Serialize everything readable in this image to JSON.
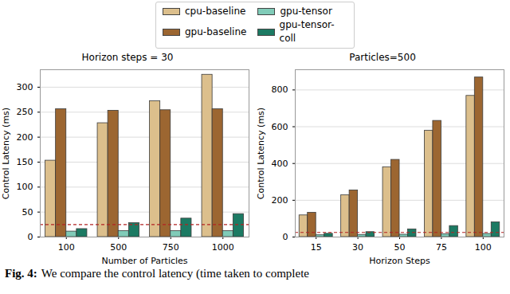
{
  "chart_data": [
    {
      "type": "bar",
      "title": "Horizon steps = 30",
      "x_label": "Number of Particles",
      "y_label": "Control Latency (ms)",
      "categories": [
        "100",
        "500",
        "750",
        "1000"
      ],
      "series": [
        {
          "name": "cpu-baseline",
          "color": "#dcbf8c",
          "values": [
            153,
            228,
            272,
            325
          ]
        },
        {
          "name": "gpu-baseline",
          "color": "#9c6631",
          "values": [
            256,
            253,
            254,
            256
          ]
        },
        {
          "name": "gpu-tensor",
          "color": "#80cbb8",
          "values": [
            11,
            12,
            12,
            12
          ]
        },
        {
          "name": "gpu-tensor-coll",
          "color": "#1c7a63",
          "values": [
            16,
            28,
            37,
            46
          ]
        }
      ],
      "ylim": [
        0,
        335
      ],
      "yticks": [
        0,
        50,
        100,
        150,
        200,
        250,
        300
      ],
      "grid": true,
      "hlines": [
        {
          "value": 25,
          "color": "#b22222",
          "line_style": "dashed"
        }
      ]
    },
    {
      "type": "bar",
      "title": "Particles=500",
      "x_label": "Horizon Steps",
      "y_label": "Control Latency (ms)",
      "categories": [
        "15",
        "30",
        "50",
        "75",
        "100"
      ],
      "series": [
        {
          "name": "cpu-baseline",
          "color": "#dcbf8c",
          "values": [
            118,
            228,
            380,
            578,
            768
          ]
        },
        {
          "name": "gpu-baseline",
          "color": "#9c6631",
          "values": [
            132,
            254,
            420,
            632,
            868
          ]
        },
        {
          "name": "gpu-tensor",
          "color": "#80cbb8",
          "values": [
            10,
            12,
            13,
            15,
            17
          ]
        },
        {
          "name": "gpu-tensor-coll",
          "color": "#1c7a63",
          "values": [
            18,
            27,
            42,
            60,
            80
          ]
        }
      ],
      "ylim": [
        0,
        910
      ],
      "yticks": [
        0,
        200,
        400,
        600,
        800
      ],
      "grid": true,
      "hlines": [
        {
          "value": 25,
          "color": "#b22222",
          "line_style": "dashed"
        }
      ]
    }
  ],
  "caption": {
    "label": "Fig. 4:",
    "text": "We compare the control latency (time taken to complete"
  }
}
